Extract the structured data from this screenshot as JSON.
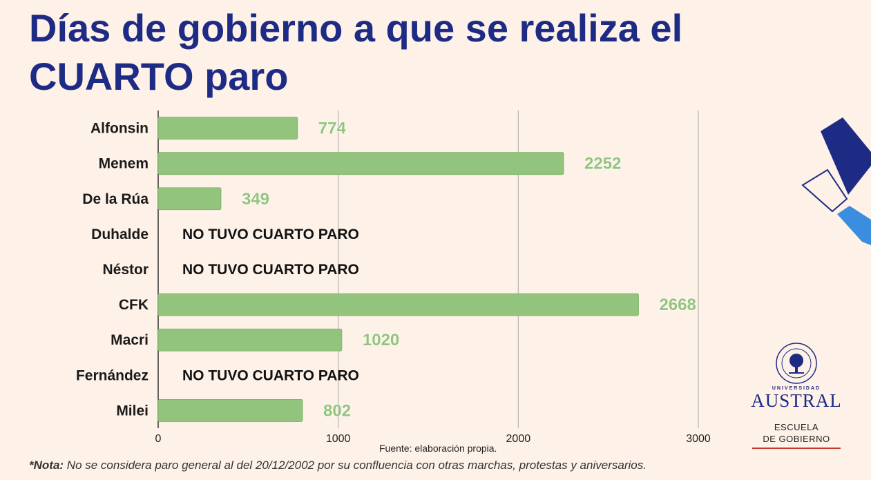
{
  "title": "Días de gobierno a que se realiza el CUARTO paro",
  "chart_data": {
    "type": "bar",
    "orientation": "horizontal",
    "categories": [
      "Alfonsin",
      "Menem",
      "De la Rúa",
      "Duhalde",
      "Néstor",
      "CFK",
      "Macri",
      "Fernández",
      "Milei"
    ],
    "values": [
      774,
      2252,
      349,
      null,
      null,
      2668,
      1020,
      null,
      802
    ],
    "value_labels": [
      "774",
      "2252",
      "349",
      "NO TUVO CUARTO PARO",
      "NO TUVO CUARTO PARO",
      "2668",
      "1020",
      "NO TUVO CUARTO PARO",
      "802"
    ],
    "xlim": [
      0,
      3000
    ],
    "xticks": [
      0,
      1000,
      2000,
      3000
    ],
    "xtick_labels": [
      "0",
      "1000",
      "2000",
      "3000"
    ],
    "grid": true,
    "bar_color": "#93c47d"
  },
  "source": "Fuente: elaboración propia.",
  "note": {
    "prefix": "*Nota:",
    "text": " No se considera paro general al del 20/12/2002 por su confluencia con otras marchas, protestas y aniversarios."
  },
  "logo": {
    "small_text": "UNIVERSIDAD",
    "name": "AUSTRAL",
    "school_line1": "ESCUELA",
    "school_line2": "DE GOBIERNO"
  },
  "colors": {
    "background": "#fdf1e8",
    "title": "#1e2b85",
    "accent_blue": "#3b8de0",
    "accent_red": "#c0392b"
  }
}
